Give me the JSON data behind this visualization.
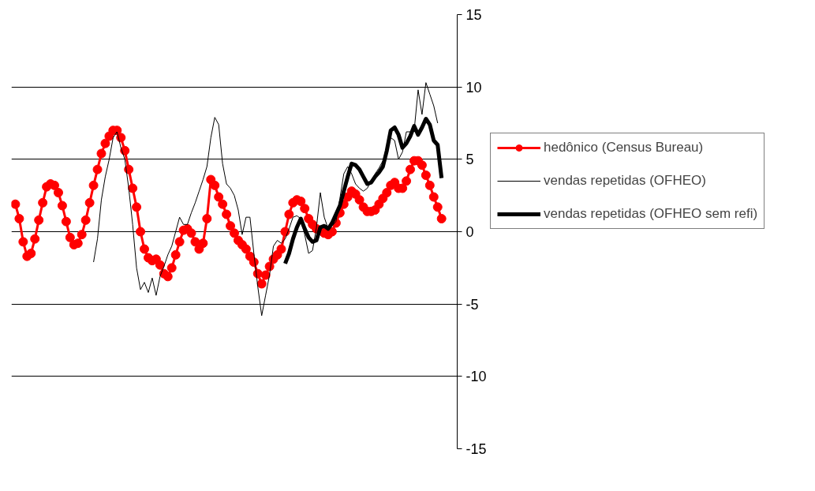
{
  "chart_data": {
    "type": "line",
    "categories": [
      null,
      null,
      null,
      null,
      null,
      null,
      null,
      null,
      null,
      null,
      null,
      null,
      null,
      null,
      null,
      null,
      null,
      null,
      null,
      null,
      null,
      null,
      null,
      null,
      null,
      null,
      null,
      null,
      null,
      null,
      null,
      null,
      null,
      null,
      null,
      null,
      null,
      null,
      null,
      null,
      null,
      null,
      null,
      null,
      null,
      null,
      null,
      null,
      null,
      null,
      null,
      null,
      null,
      null,
      null,
      null,
      null,
      null,
      null,
      null,
      null,
      null,
      null,
      null,
      null,
      null,
      null,
      null,
      null,
      null,
      null,
      null,
      null,
      null,
      null,
      null,
      null,
      null,
      null,
      null,
      null,
      null,
      null,
      null,
      null,
      null,
      null,
      null,
      null,
      null,
      null,
      null,
      null,
      null,
      null,
      null,
      null,
      null,
      null,
      null,
      null,
      null,
      null,
      null,
      null,
      null,
      null,
      null,
      null,
      null
    ],
    "series": [
      {
        "name": "hedônico (Census Bureau)",
        "color": "#ff0000",
        "marker": "circle",
        "values": [
          1.9,
          0.9,
          -0.7,
          -1.7,
          -1.5,
          -0.5,
          0.8,
          2.0,
          3.1,
          3.3,
          3.2,
          2.7,
          1.8,
          0.7,
          -0.4,
          -0.9,
          -0.8,
          -0.2,
          0.8,
          2.0,
          3.2,
          4.3,
          5.4,
          6.1,
          6.6,
          7.0,
          7.0,
          6.5,
          5.6,
          4.3,
          3.0,
          1.7,
          0.0,
          -1.2,
          -1.8,
          -2.0,
          -1.9,
          -2.3,
          -2.9,
          -3.1,
          -2.5,
          -1.6,
          -0.7,
          0.1,
          0.2,
          -0.1,
          -0.7,
          -1.2,
          -0.8,
          0.9,
          3.6,
          3.2,
          2.4,
          1.9,
          1.2,
          0.4,
          -0.1,
          -0.6,
          -0.9,
          -1.2,
          -1.7,
          -2.1,
          -2.9,
          -3.6,
          -3.0,
          -2.4,
          -1.9,
          -1.6,
          -1.2,
          0.0,
          1.2,
          2.0,
          2.2,
          2.1,
          1.6,
          0.9,
          0.5,
          0.2,
          0.1,
          -0.1,
          -0.2,
          0.0,
          0.6,
          1.3,
          1.9,
          2.4,
          2.8,
          2.6,
          2.2,
          1.7,
          1.4,
          1.4,
          1.5,
          1.9,
          2.3,
          2.7,
          3.2,
          3.4,
          3.0,
          3.0,
          3.5,
          4.3,
          4.9,
          4.9,
          4.6,
          3.9,
          3.2,
          2.4,
          1.7,
          0.9
        ]
      },
      {
        "name": "vendas repetidas (OFHEO)",
        "color": "#000000",
        "marker": "none",
        "values": [
          null,
          null,
          null,
          null,
          null,
          null,
          null,
          null,
          null,
          null,
          null,
          null,
          null,
          null,
          null,
          null,
          null,
          null,
          null,
          null,
          -2.1,
          -0.5,
          2.2,
          3.8,
          5.0,
          6.5,
          6.9,
          5.8,
          5.0,
          3.0,
          0.5,
          -2.5,
          -4.0,
          -3.5,
          -4.2,
          -3.2,
          -4.4,
          -3.1,
          -2.4,
          -1.6,
          -1.0,
          0.0,
          1.0,
          0.5,
          0.5,
          1.3,
          2.0,
          2.8,
          3.6,
          4.5,
          6.5,
          7.9,
          7.4,
          4.7,
          3.3,
          3.0,
          2.5,
          1.5,
          -0.2,
          1.0,
          1.0,
          -1.5,
          -3.8,
          -5.8,
          -4.4,
          -3.0,
          -1.0,
          -0.6,
          -0.8,
          -0.5,
          0.2,
          1.0,
          1.1,
          0.9,
          -0.2,
          -1.5,
          -1.3,
          0.3,
          2.7,
          1.0,
          0.2,
          0.4,
          0.7,
          2.3,
          4.0,
          4.5,
          4.0,
          3.3,
          3.0,
          2.8,
          3.0,
          3.5,
          4.0,
          4.4,
          4.9,
          5.8,
          6.5,
          6.3,
          5.0,
          5.5,
          6.9,
          6.9,
          7.0,
          9.8,
          8.1,
          10.3,
          9.5,
          8.7,
          7.5,
          null
        ]
      },
      {
        "name": "vendas repetidas (OFHEO sem refi)",
        "color": "#000000",
        "marker": "none",
        "values": [
          null,
          null,
          null,
          null,
          null,
          null,
          null,
          null,
          null,
          null,
          null,
          null,
          null,
          null,
          null,
          null,
          null,
          null,
          null,
          null,
          null,
          null,
          null,
          null,
          null,
          null,
          null,
          null,
          null,
          null,
          null,
          null,
          null,
          null,
          null,
          null,
          null,
          null,
          null,
          null,
          null,
          null,
          null,
          null,
          null,
          null,
          null,
          null,
          null,
          null,
          null,
          null,
          null,
          null,
          null,
          null,
          null,
          null,
          null,
          null,
          null,
          null,
          null,
          null,
          null,
          null,
          null,
          null,
          null,
          -2.2,
          -1.5,
          -0.5,
          0.3,
          0.9,
          0.2,
          -0.4,
          -0.7,
          -0.6,
          0.3,
          0.4,
          0.2,
          0.6,
          1.2,
          1.8,
          2.8,
          3.8,
          4.7,
          4.6,
          4.3,
          3.8,
          3.3,
          3.4,
          3.8,
          4.1,
          4.5,
          5.6,
          7.0,
          7.2,
          6.7,
          5.8,
          6.1,
          6.6,
          7.3,
          6.7,
          7.2,
          7.8,
          7.4,
          6.3,
          6.0,
          3.7
        ]
      }
    ],
    "ylim": [
      -15,
      15
    ],
    "yticks": [
      -15,
      -10,
      -5,
      0,
      5,
      10,
      15
    ],
    "grid": "y",
    "legend": "right",
    "tick_labels": "y",
    "line_style": "solid"
  }
}
